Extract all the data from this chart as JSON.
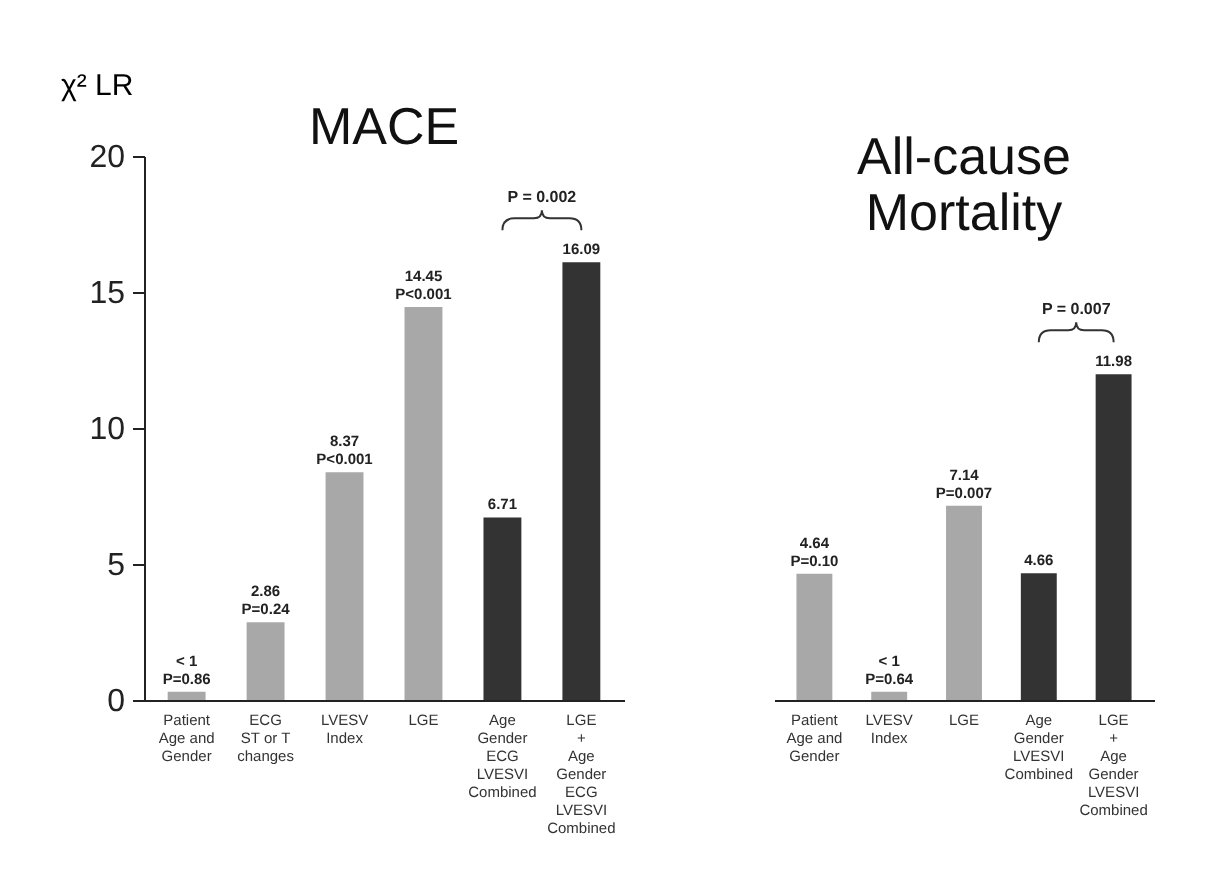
{
  "chart_data": [
    {
      "type": "bar",
      "title": "MACE",
      "ylabel": "χ² LR",
      "categories": [
        "Patient\nAge and\nGender",
        "ECG\nST or T\nchanges",
        "LVESV\nIndex",
        "LGE",
        "Age\nGender\nECG\nLVESVI\nCombined",
        "LGE\n+\nAge\nGender\nECG\nLVESVI\nCombined"
      ],
      "values": [
        0.3,
        2.86,
        8.37,
        14.45,
        6.71,
        16.09
      ],
      "colors": [
        "#a8a8a8",
        "#a8a8a8",
        "#a8a8a8",
        "#a8a8a8",
        "#333333",
        "#333333"
      ],
      "value_labels": [
        "< 1\nP=0.86",
        "2.86\nP=0.24",
        "8.37\nP<0.001",
        "14.45\nP<0.001",
        "6.71",
        "16.09"
      ],
      "ylim": [
        0,
        20
      ],
      "yticks": [
        0,
        5,
        10,
        15,
        20
      ],
      "annotations": [
        "P = 0.002"
      ]
    },
    {
      "type": "bar",
      "title": "All-cause Mortality",
      "categories": [
        "Patient\nAge and\nGender",
        "LVESV\nIndex",
        "LGE",
        "Age\nGender\nLVESVI\nCombined",
        "LGE\n+\nAge\nGender\nLVESVI\nCombined"
      ],
      "values": [
        4.64,
        0.3,
        7.14,
        4.66,
        11.98
      ],
      "colors": [
        "#a8a8a8",
        "#a8a8a8",
        "#a8a8a8",
        "#333333",
        "#333333"
      ],
      "value_labels": [
        "4.64\nP=0.10",
        "< 1\nP=0.64",
        "7.14\nP=0.007",
        "4.66",
        "11.98"
      ],
      "ylim": [
        0,
        20
      ],
      "yticks": [
        0,
        5,
        10,
        15,
        20
      ],
      "tick_labels": "x",
      "annotations": [
        "P = 0.007"
      ]
    }
  ]
}
